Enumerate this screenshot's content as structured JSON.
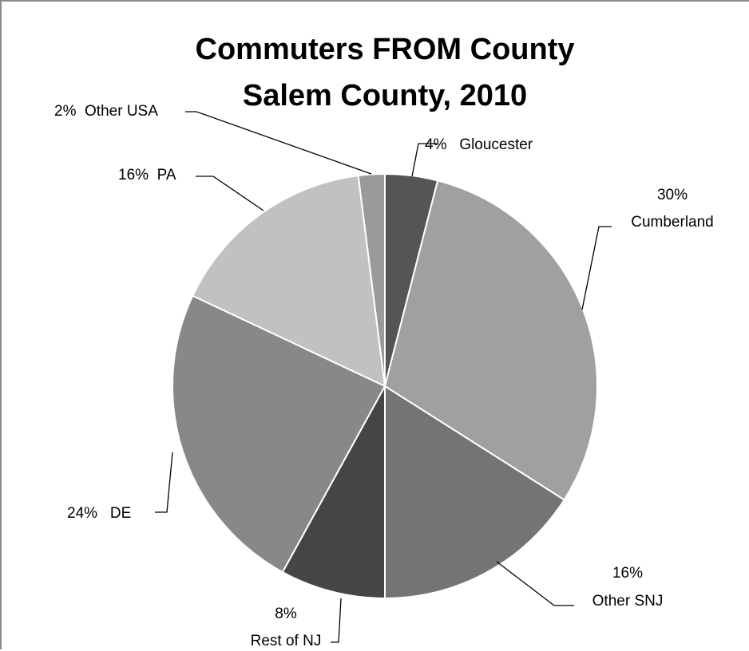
{
  "chart_data": {
    "type": "pie",
    "title_lines": [
      "Commuters FROM County",
      "Salem County, 2010"
    ],
    "slices": [
      {
        "name": "Gloucester",
        "value": 4,
        "label_line1": "4%   Gloucester",
        "label_line2": "",
        "color": "#555555"
      },
      {
        "name": "Cumberland",
        "value": 30,
        "label_line1": "30%",
        "label_line2": "Cumberland",
        "color": "#a0a0a0"
      },
      {
        "name": "Other SNJ",
        "value": 16,
        "label_line1": "16%",
        "label_line2": "Other SNJ",
        "color": "#747474"
      },
      {
        "name": "Rest of NJ",
        "value": 8,
        "label_line1": "8%",
        "label_line2": "Rest of NJ",
        "color": "#454545"
      },
      {
        "name": "DE",
        "value": 24,
        "label_line1": "24%   DE",
        "label_line2": "",
        "color": "#888888"
      },
      {
        "name": "PA",
        "value": 16,
        "label_line1": "16%  PA",
        "label_line2": "",
        "color": "#c1c1c1"
      },
      {
        "name": "Other USA",
        "value": 2,
        "label_line1": "2%  Other USA",
        "label_line2": "",
        "color": "#9a9a9a"
      }
    ]
  }
}
